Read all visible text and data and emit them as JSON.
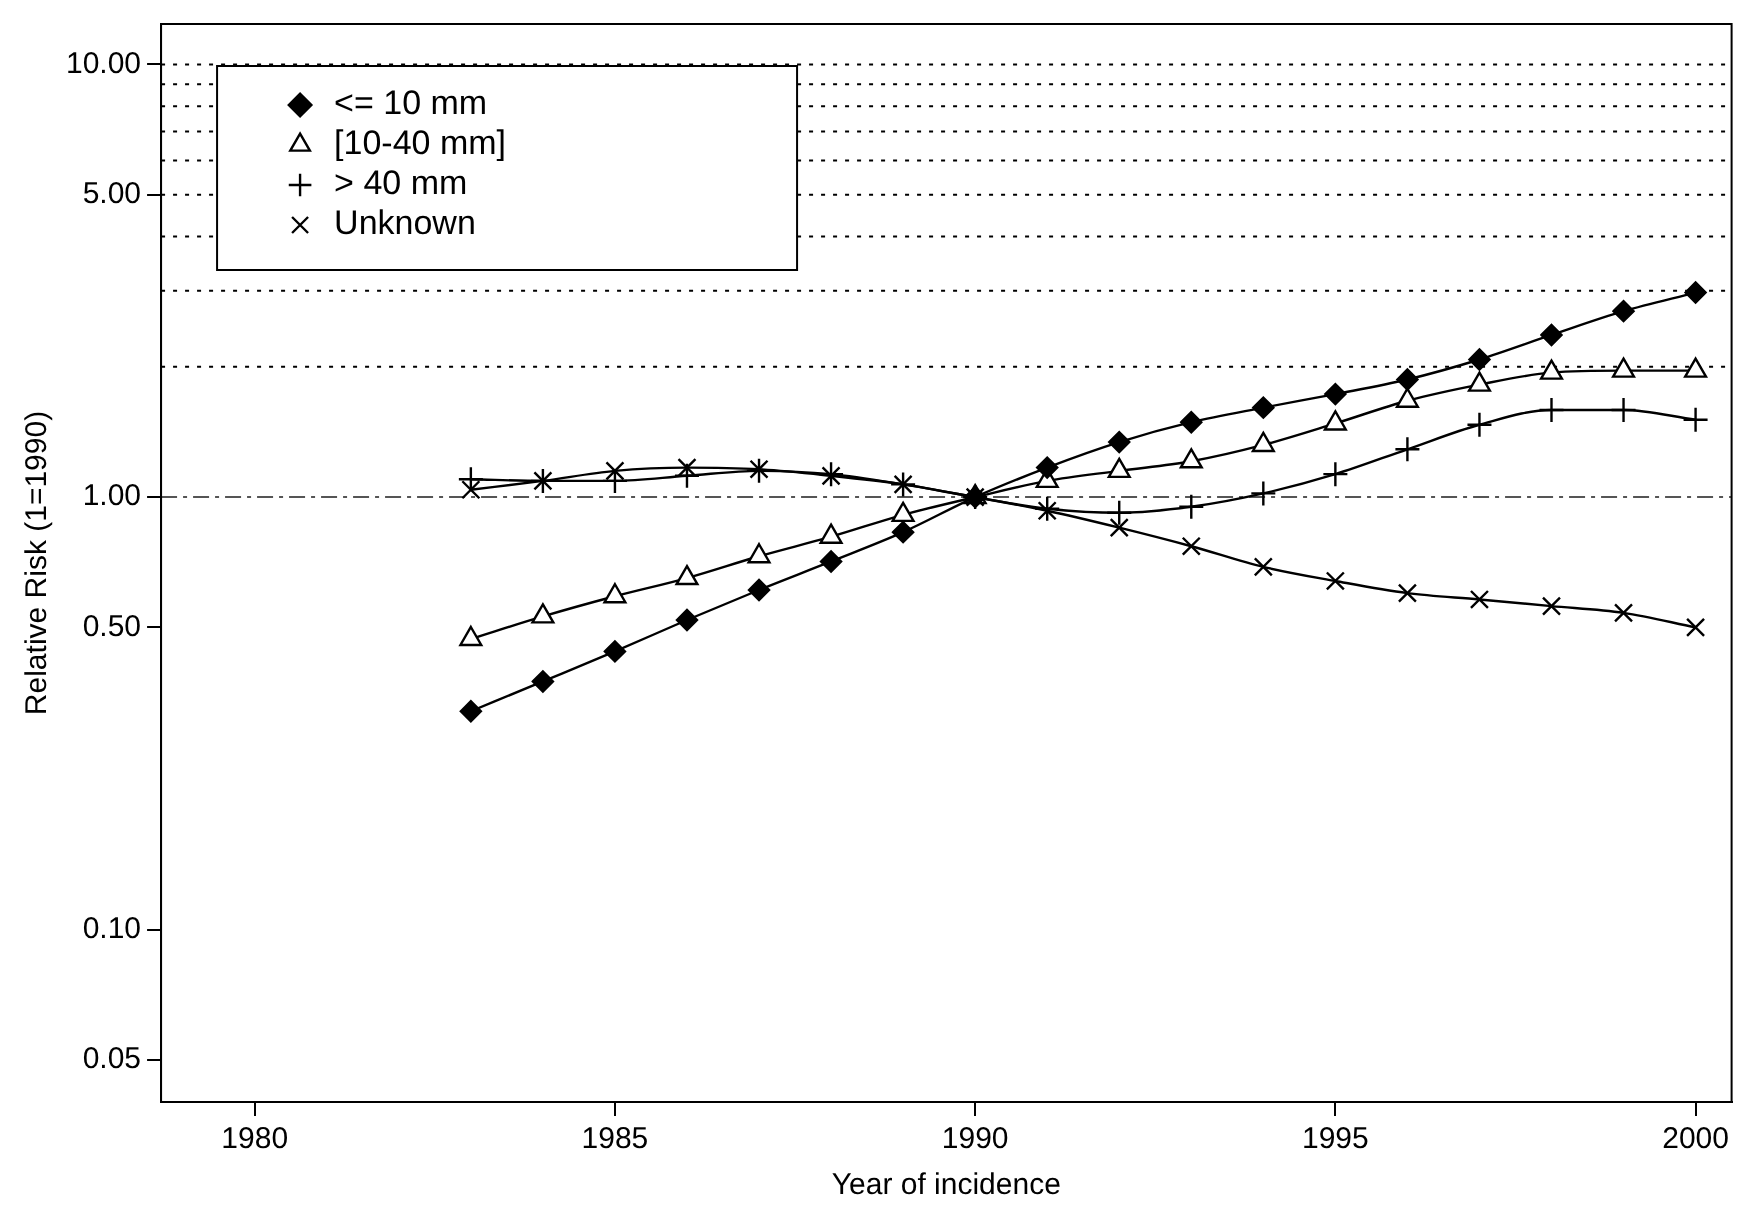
{
  "chart_data": {
    "type": "line",
    "xlabel": "Year of incidence",
    "ylabel": "Relative Risk (1=1990)",
    "x": [
      1983,
      1984,
      1985,
      1986,
      1987,
      1988,
      1989,
      1990,
      1991,
      1992,
      1993,
      1994,
      1995,
      1996,
      1997,
      1998,
      1999,
      2000
    ],
    "series": [
      {
        "name": "<= 10 mm",
        "color": "#000000",
        "marker": "diamond",
        "values": [
          0.32,
          0.375,
          0.44,
          0.52,
          0.61,
          0.71,
          0.83,
          1,
          1.17,
          1.34,
          1.49,
          1.61,
          1.73,
          1.87,
          2.08,
          2.37,
          2.69,
          2.97
        ]
      },
      {
        "name": "[10-40 mm]",
        "color": "#000000",
        "marker": "triangle",
        "values": [
          0.47,
          0.53,
          0.59,
          0.65,
          0.73,
          0.81,
          0.91,
          1,
          1.09,
          1.15,
          1.21,
          1.32,
          1.48,
          1.67,
          1.82,
          1.94,
          1.96,
          1.96
        ]
      },
      {
        "name": "> 40 mm",
        "color": "#000000",
        "marker": "cross",
        "values": [
          1.1,
          1.09,
          1.09,
          1.12,
          1.15,
          1.13,
          1.07,
          1,
          0.94,
          0.92,
          0.95,
          1.02,
          1.13,
          1.29,
          1.47,
          1.59,
          1.59,
          1.51
        ]
      },
      {
        "name": "Unknown",
        "color": "#000000",
        "marker": "x",
        "values": [
          1.04,
          1.09,
          1.15,
          1.17,
          1.16,
          1.12,
          1.07,
          1,
          0.93,
          0.85,
          0.77,
          0.69,
          0.64,
          0.6,
          0.58,
          0.56,
          0.54,
          0.5
        ]
      }
    ],
    "log": "y",
    "xlim": [
      1978.7,
      2000.5
    ],
    "ylim": [
      0.04,
      12.4
    ],
    "xticks": [
      1980,
      1985,
      1990,
      1995,
      2000
    ],
    "yticks": [
      {
        "value": 0.05,
        "label": "0.05"
      },
      {
        "value": 0.1,
        "label": "0.10"
      },
      {
        "value": 0.5,
        "label": "0.50"
      },
      {
        "value": 1,
        "label": "1.00"
      },
      {
        "value": 5,
        "label": "5.00"
      },
      {
        "value": 10,
        "label": "10.00"
      }
    ],
    "ref_lines": [
      {
        "axis": "y",
        "value": 1,
        "color": "#555555",
        "line_style": "dashdot"
      },
      {
        "axis": "y",
        "value": 2,
        "color": "#000000",
        "line_style": "dotted"
      },
      {
        "axis": "y",
        "value": 3,
        "color": "#000000",
        "line_style": "dotted"
      },
      {
        "axis": "y",
        "value": 4,
        "color": "#000000",
        "line_style": "dotted"
      },
      {
        "axis": "y",
        "value": 5,
        "color": "#000000",
        "line_style": "dotted"
      },
      {
        "axis": "y",
        "value": 6,
        "color": "#000000",
        "line_style": "dotted"
      },
      {
        "axis": "y",
        "value": 7,
        "color": "#000000",
        "line_style": "dotted"
      },
      {
        "axis": "y",
        "value": 8,
        "color": "#000000",
        "line_style": "dotted"
      },
      {
        "axis": "y",
        "value": 9,
        "color": "#000000",
        "line_style": "dotted"
      },
      {
        "axis": "y",
        "value": 10,
        "color": "#000000",
        "line_style": "dotted"
      }
    ],
    "grid": false,
    "legend": "top left"
  }
}
